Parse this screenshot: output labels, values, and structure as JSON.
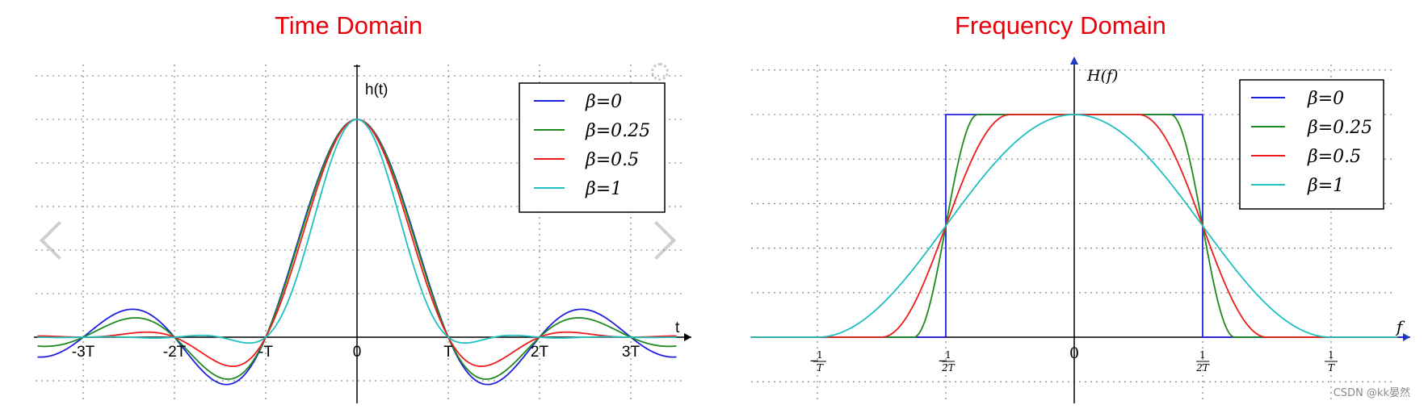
{
  "titles": {
    "left": "Time Domain",
    "right": "Frequency Domain"
  },
  "watermark": "CSDN @kk晏然",
  "icons": {
    "prev": "chevron-left-icon",
    "next": "chevron-right-icon",
    "settings": "gear-icon"
  },
  "chart_data": [
    {
      "type": "line",
      "title": "Time Domain",
      "xlabel": "t",
      "ylabel": "h(t)",
      "xlim": [
        -3.5,
        3.5
      ],
      "ylim": [
        -0.3,
        1.2
      ],
      "x_ticks": [
        -3,
        -2,
        -1,
        0,
        1,
        2,
        3
      ],
      "x_tick_labels": [
        "-3T",
        "-2T",
        "-T",
        "0",
        "T",
        "2T",
        "3T"
      ],
      "grid": true,
      "legend_position": "top-right",
      "function": "raised-cosine impulse response h(t) = sinc(t/T)·cos(πβt/T)/(1−(2βt/T)²)",
      "series": [
        {
          "name": "β=0",
          "beta": 0,
          "color": "#1f1fe0"
        },
        {
          "name": "β=0.25",
          "beta": 0.25,
          "color": "#1e8a1e"
        },
        {
          "name": "β=0.5",
          "beta": 0.5,
          "color": "#ee1c1c"
        },
        {
          "name": "β=1",
          "beta": 1,
          "color": "#20c0c0"
        }
      ]
    },
    {
      "type": "line",
      "title": "Frequency Domain",
      "xlabel": "f",
      "ylabel": "H(f)",
      "xlim": [
        -1.2,
        1.2
      ],
      "ylim": [
        -0.2,
        1.2
      ],
      "x_ticks": [
        -1,
        -0.5,
        0,
        0.5,
        1
      ],
      "x_tick_labels": [
        "-1/T",
        "-1/2T",
        "0",
        "1/2T",
        "1/T"
      ],
      "grid": true,
      "legend_position": "top-right",
      "function": "raised-cosine spectrum H(f), flat for |f| ≤ (1−β)/2T, cosine roll-off to (1+β)/2T",
      "series": [
        {
          "name": "β=0",
          "beta": 0,
          "color": "#1f1fe0"
        },
        {
          "name": "β=0.25",
          "beta": 0.25,
          "color": "#1e8a1e"
        },
        {
          "name": "β=0.5",
          "beta": 0.5,
          "color": "#ee1c1c"
        },
        {
          "name": "β=1",
          "beta": 1,
          "color": "#20c0c0"
        }
      ]
    }
  ]
}
